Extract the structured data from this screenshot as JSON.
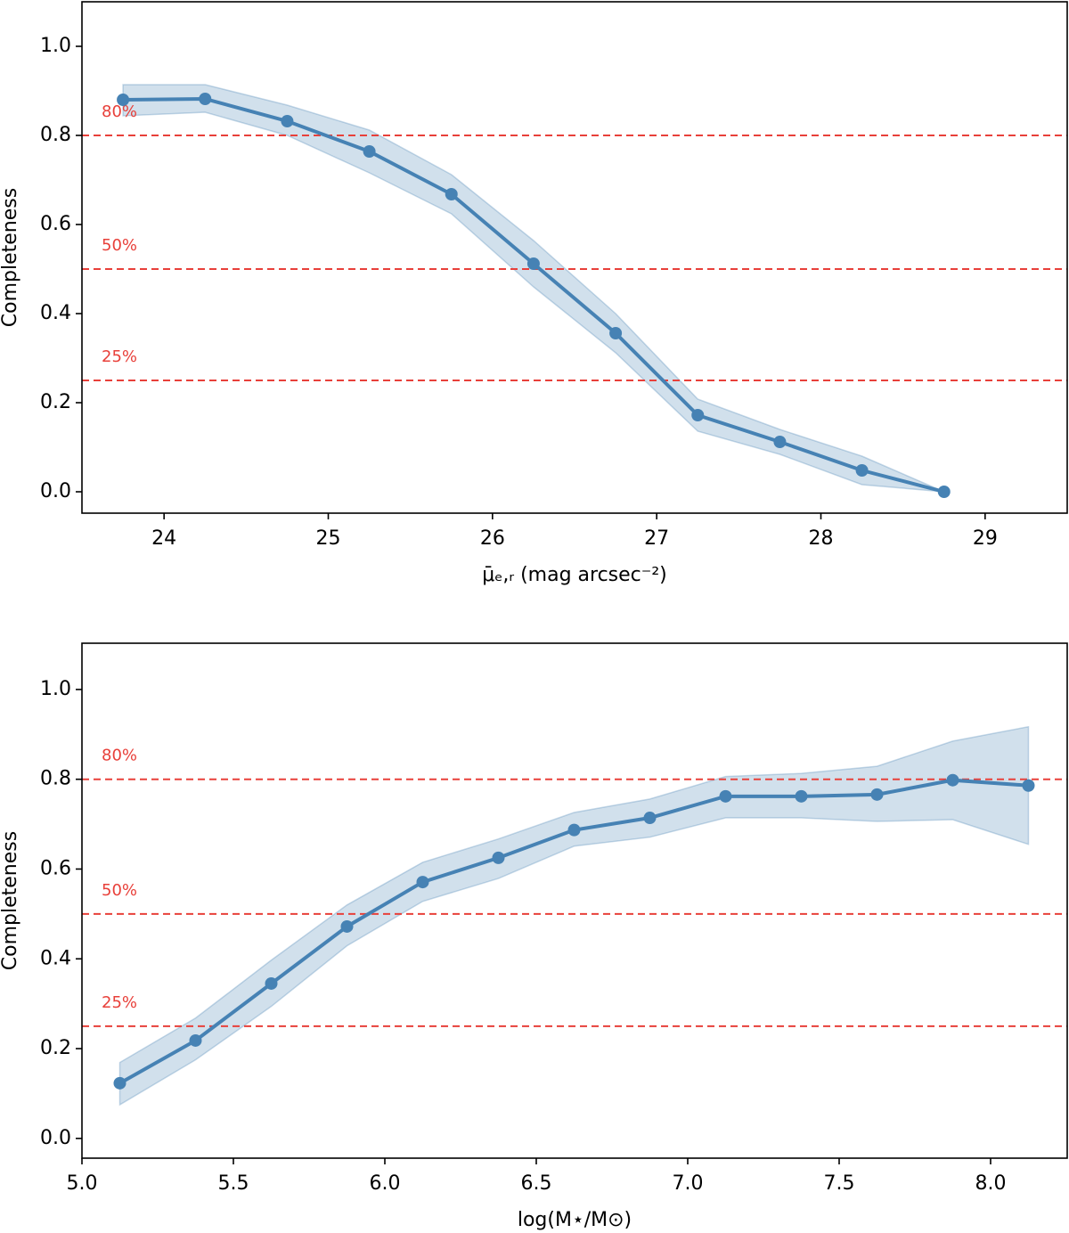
{
  "chart_data": [
    {
      "type": "line",
      "x_label": "μ̄ₑ,ᵣ (mag arcsec⁻²)",
      "y_label": "Completeness",
      "x": [
        23.75,
        24.25,
        24.75,
        25.25,
        25.75,
        26.25,
        26.75,
        27.25,
        27.75,
        28.25,
        28.75
      ],
      "series": [
        {
          "color": "#4682b4",
          "values": [
            0.88,
            0.882,
            0.832,
            0.764,
            0.668,
            0.512,
            0.356,
            0.172,
            0.112,
            0.048,
            0
          ],
          "upper": [
            0.914,
            0.914,
            0.868,
            0.812,
            0.712,
            0.564,
            0.4,
            0.208,
            0.14,
            0.08,
            0
          ],
          "lower": [
            0.844,
            0.852,
            0.8,
            0.716,
            0.624,
            0.46,
            0.312,
            0.136,
            0.084,
            0.016,
            0
          ]
        }
      ],
      "hlines": [
        {
          "value": 0.8,
          "label": "80%"
        },
        {
          "value": 0.5,
          "label": "50%"
        },
        {
          "value": 0.25,
          "label": "25%"
        }
      ],
      "hline_color": "#e8403a",
      "xlim": [
        23.5,
        29.5
      ],
      "xticks": [
        24,
        25,
        26,
        27,
        28,
        29
      ],
      "ylim": [
        -0.048,
        1.1
      ],
      "yticks": [
        {
          "value": 0,
          "label": "0.0"
        },
        0.2,
        0.4,
        0.6,
        0.8,
        {
          "value": 1,
          "label": "1.0"
        }
      ]
    },
    {
      "type": "line",
      "x_label": "log(M⋆/M⊙)",
      "y_label": "Completeness",
      "x": [
        5.125,
        5.375,
        5.625,
        5.875,
        6.125,
        6.375,
        6.625,
        6.875,
        7.125,
        7.375,
        7.625,
        7.875,
        8.125
      ],
      "series": [
        {
          "color": "#4682b4",
          "values": [
            0.123,
            0.218,
            0.345,
            0.472,
            0.571,
            0.625,
            0.687,
            0.714,
            0.762,
            0.762,
            0.766,
            0.798,
            0.786
          ],
          "upper": [
            0.169,
            0.268,
            0.397,
            0.52,
            0.615,
            0.667,
            0.726,
            0.756,
            0.806,
            0.813,
            0.829,
            0.885,
            0.917
          ],
          "lower": [
            0.075,
            0.175,
            0.294,
            0.429,
            0.528,
            0.579,
            0.651,
            0.671,
            0.714,
            0.714,
            0.706,
            0.71,
            0.655
          ]
        }
      ],
      "hlines": [
        {
          "value": 0.8,
          "label": "80%"
        },
        {
          "value": 0.5,
          "label": "50%"
        },
        {
          "value": 0.25,
          "label": "25%"
        }
      ],
      "hline_color": "#e8403a",
      "xlim": [
        5.0,
        8.253
      ],
      "xticks": [
        {
          "value": 5,
          "label": "5.0"
        },
        5.5,
        {
          "value": 6,
          "label": "6.0"
        },
        6.5,
        {
          "value": 7,
          "label": "7.0"
        },
        7.5,
        {
          "value": 8,
          "label": "8.0"
        }
      ],
      "ylim": [
        -0.044,
        1.103
      ],
      "yticks": [
        {
          "value": 0,
          "label": "0.0"
        },
        0.2,
        0.4,
        0.6,
        0.8,
        {
          "value": 1,
          "label": "1.0"
        }
      ]
    }
  ]
}
